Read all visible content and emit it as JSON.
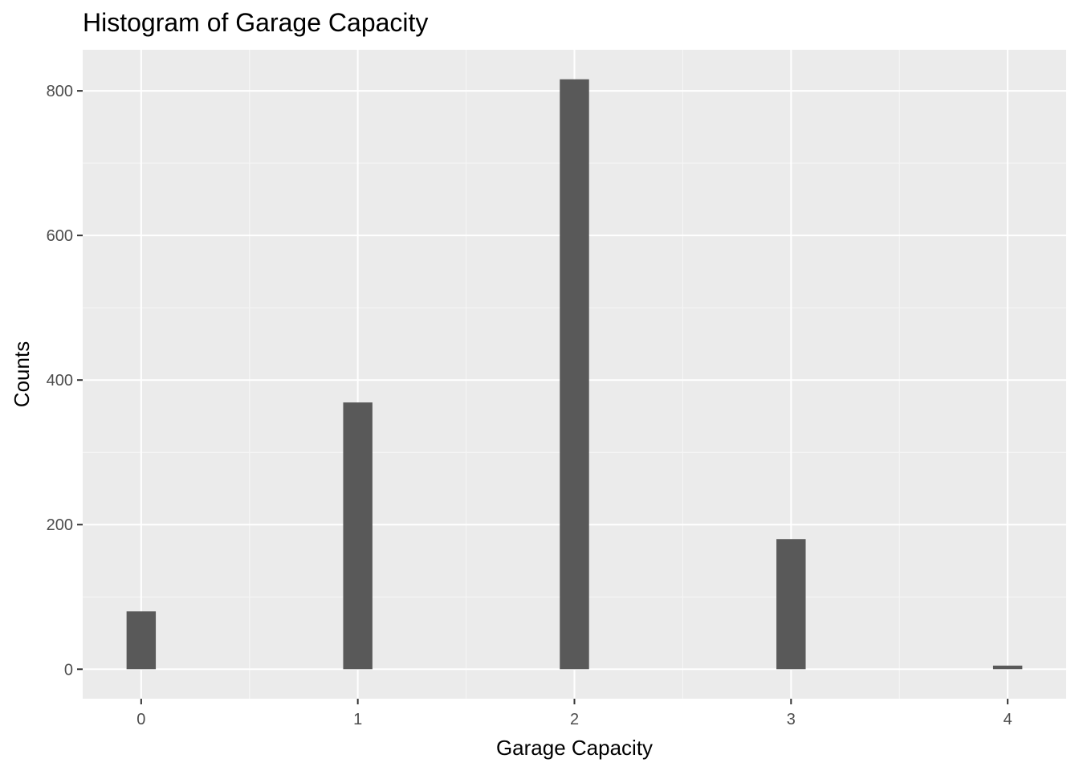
{
  "chart_data": {
    "type": "bar",
    "title": "Histogram of Garage Capacity",
    "xlabel": "Garage Capacity",
    "ylabel": "Counts",
    "x": [
      0,
      1,
      2,
      3,
      4
    ],
    "values": [
      80,
      369,
      816,
      180,
      5
    ],
    "x_ticks": [
      "0",
      "1",
      "2",
      "3",
      "4"
    ],
    "y_ticks": [
      0,
      200,
      400,
      600,
      800
    ],
    "xlim": [
      -0.27,
      4.27
    ],
    "ylim": [
      -40.8,
      856.8
    ],
    "bar_width": 0.135,
    "grid": true,
    "colors": {
      "panel_background": "#ebebeb",
      "grid_major": "#ffffff",
      "grid_minor": "#f5f5f5",
      "bar_fill": "#595959",
      "tick_text": "#4d4d4d"
    }
  }
}
